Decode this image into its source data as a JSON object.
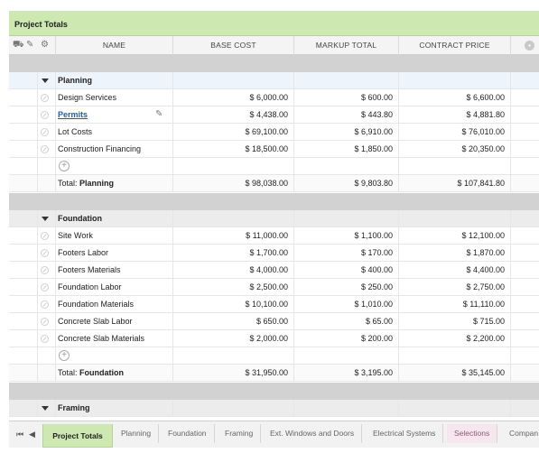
{
  "title": "Project Totals",
  "columns": {
    "name": "NAME",
    "base": "BASE COST",
    "markup": "MARKUP TOTAL",
    "price": "CONTRACT PRICE"
  },
  "groups": [
    {
      "name": "Planning",
      "items": [
        {
          "name": "Design Services",
          "base": "$ 6,000.00",
          "markup": "$ 600.00",
          "price": "$ 6,600.00"
        },
        {
          "name": "Permits",
          "base": "$ 4,438.00",
          "markup": "$ 443.80",
          "price": "$ 4,881.80"
        },
        {
          "name": "Lot Costs",
          "base": "$ 69,100.00",
          "markup": "$ 6,910.00",
          "price": "$ 76,010.00"
        },
        {
          "name": "Construction Financing",
          "base": "$ 18,500.00",
          "markup": "$ 1,850.00",
          "price": "$ 20,350.00"
        }
      ],
      "total": {
        "label": "Total:",
        "name": "Planning",
        "base": "$ 98,038.00",
        "markup": "$ 9,803.80",
        "price": "$ 107,841.80"
      }
    },
    {
      "name": "Foundation",
      "items": [
        {
          "name": "Site Work",
          "base": "$ 11,000.00",
          "markup": "$ 1,100.00",
          "price": "$ 12,100.00"
        },
        {
          "name": "Footers Labor",
          "base": "$ 1,700.00",
          "markup": "$ 170.00",
          "price": "$ 1,870.00"
        },
        {
          "name": "Footers Materials",
          "base": "$ 4,000.00",
          "markup": "$ 400.00",
          "price": "$ 4,400.00"
        },
        {
          "name": "Foundation Labor",
          "base": "$ 2,500.00",
          "markup": "$ 250.00",
          "price": "$ 2,750.00"
        },
        {
          "name": "Foundation Materials",
          "base": "$ 10,100.00",
          "markup": "$ 1,010.00",
          "price": "$ 11,110.00"
        },
        {
          "name": "Concrete Slab Labor",
          "base": "$ 650.00",
          "markup": "$ 65.00",
          "price": "$ 715.00"
        },
        {
          "name": "Concrete Slab Materials",
          "base": "$ 2,000.00",
          "markup": "$ 200.00",
          "price": "$ 2,200.00"
        }
      ],
      "total": {
        "label": "Total:",
        "name": "Foundation",
        "base": "$ 31,950.00",
        "markup": "$ 3,195.00",
        "price": "$ 35,145.00"
      }
    },
    {
      "name": "Framing"
    }
  ],
  "tabs": [
    "Project Totals",
    "Planning",
    "Foundation",
    "Framing",
    "Ext. Windows and Doors",
    "Electrical Systems",
    "Selections",
    "Compan"
  ],
  "colors": {
    "title_bg": "#cde8b0",
    "group_bg": "#eef4fc",
    "spacer": "#d2d2d2",
    "link": "#1f5ea8",
    "pink_tab": "#f8e6ee"
  },
  "icons": [
    "database-icon",
    "edit-icon",
    "gear-icon",
    "options-icon",
    "collapse-caret-icon",
    "status-circle-icon",
    "add-icon",
    "pencil-icon",
    "first-page-icon",
    "prev-page-icon"
  ]
}
